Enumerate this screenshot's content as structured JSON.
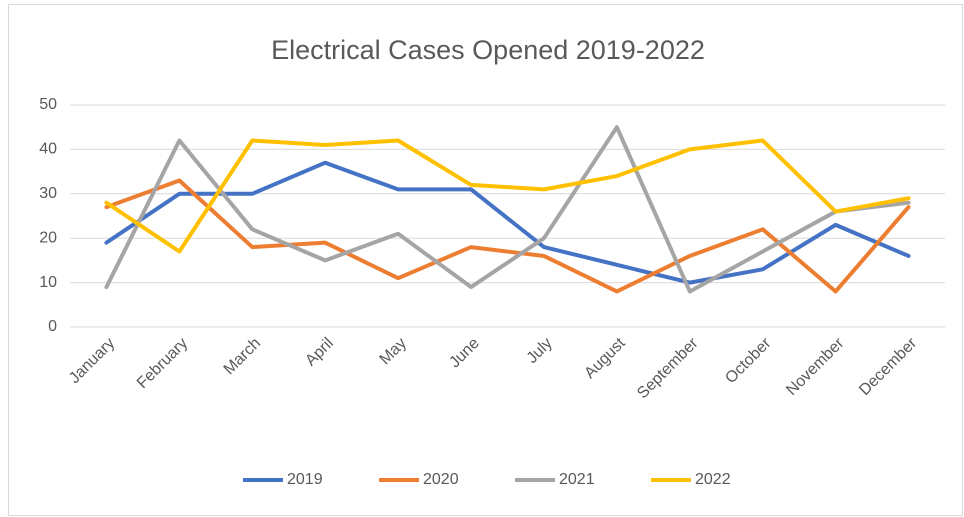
{
  "chart_data": {
    "type": "line",
    "title": "Electrical Cases Opened 2019-2022",
    "categories": [
      "January",
      "February",
      "March",
      "April",
      "May",
      "June",
      "July",
      "August",
      "September",
      "October",
      "November",
      "December"
    ],
    "series": [
      {
        "name": "2019",
        "color": "#4472c4",
        "values": [
          19,
          30,
          30,
          37,
          31,
          31,
          18,
          14,
          10,
          13,
          23,
          16
        ]
      },
      {
        "name": "2020",
        "color": "#ed7d31",
        "values": [
          27,
          33,
          18,
          19,
          11,
          18,
          16,
          8,
          16,
          22,
          8,
          27
        ]
      },
      {
        "name": "2021",
        "color": "#a5a5a5",
        "values": [
          9,
          42,
          22,
          15,
          21,
          9,
          20,
          45,
          8,
          17,
          26,
          28
        ]
      },
      {
        "name": "2022",
        "color": "#ffc000",
        "values": [
          28,
          17,
          42,
          41,
          42,
          32,
          31,
          34,
          40,
          42,
          26,
          29
        ]
      }
    ],
    "ylim": [
      0,
      50
    ],
    "yticks": [
      0,
      10,
      20,
      30,
      40,
      50
    ],
    "grid": true,
    "legend": "bottom"
  }
}
